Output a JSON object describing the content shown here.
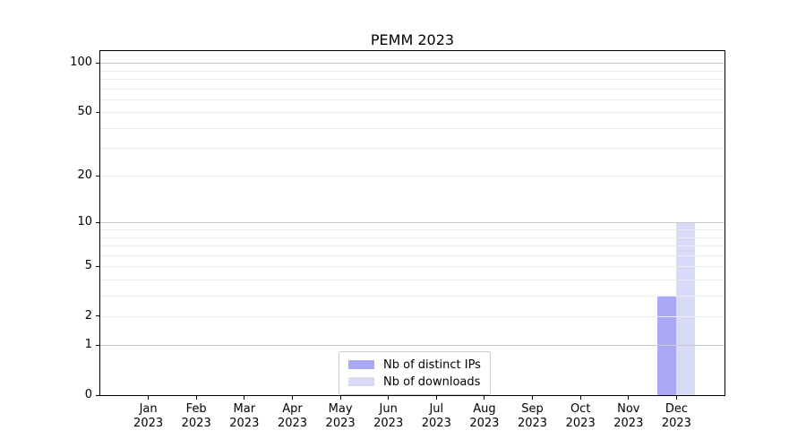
{
  "title": "PEMM 2023",
  "chart_data": {
    "type": "bar",
    "title": "PEMM 2023",
    "categories": [
      {
        "month": "Jan",
        "year": "2023"
      },
      {
        "month": "Feb",
        "year": "2023"
      },
      {
        "month": "Mar",
        "year": "2023"
      },
      {
        "month": "Apr",
        "year": "2023"
      },
      {
        "month": "May",
        "year": "2023"
      },
      {
        "month": "Jun",
        "year": "2023"
      },
      {
        "month": "Jul",
        "year": "2023"
      },
      {
        "month": "Aug",
        "year": "2023"
      },
      {
        "month": "Sep",
        "year": "2023"
      },
      {
        "month": "Oct",
        "year": "2023"
      },
      {
        "month": "Nov",
        "year": "2023"
      },
      {
        "month": "Dec",
        "year": "2023"
      }
    ],
    "series": [
      {
        "name": "Nb of distinct IPs",
        "color": "#a9a9f5",
        "values": [
          0,
          0,
          0,
          0,
          0,
          0,
          0,
          0,
          0,
          0,
          0,
          2
        ]
      },
      {
        "name": "Nb of downloads",
        "color": "#d9d9f8",
        "values": [
          0,
          0,
          0,
          0,
          0,
          0,
          0,
          0,
          0,
          0,
          0,
          9
        ]
      }
    ],
    "y_axis": {
      "scale": "log1p",
      "tick_values": [
        0,
        1,
        2,
        5,
        10,
        20,
        50,
        100
      ],
      "major_gridlines": [
        1,
        10,
        100
      ],
      "minor_gridlines": [
        2,
        3,
        4,
        5,
        6,
        7,
        8,
        9,
        20,
        30,
        40,
        50,
        60,
        70,
        80,
        90
      ],
      "min": 0,
      "max": 117
    },
    "x_axis": {
      "label_lines": 2
    },
    "legend": {
      "position": "lower center"
    },
    "grid": true
  },
  "colors": {
    "background": "#ffffff",
    "axis": "#000000",
    "text": "#000000",
    "grid_major": "#c9c9c9",
    "grid_minor": "#ececec",
    "legend_border": "#cccccc"
  }
}
